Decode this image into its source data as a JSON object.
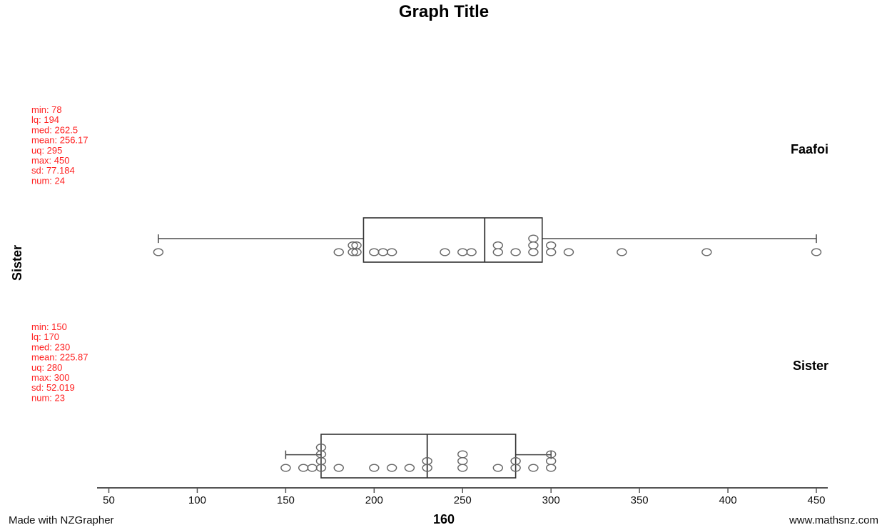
{
  "chart_data": {
    "type": "box",
    "title": "Graph Title",
    "xlabel": "160",
    "ylabel": "Sister",
    "xlim": [
      45,
      455
    ],
    "xticks": [
      50,
      100,
      150,
      200,
      250,
      300,
      350,
      400,
      450
    ],
    "groups": [
      {
        "name": "Faafoi",
        "stats": {
          "min": 78,
          "lq": 194,
          "med": 262.5,
          "mean": 256.17,
          "uq": 295,
          "max": 450,
          "sd": 77.184,
          "num": 24
        },
        "stats_text": [
          "min: 78",
          "lq: 194",
          "med: 262.5",
          "mean: 256.17",
          "uq: 295",
          "max: 450",
          "sd: 77.184",
          "num: 24"
        ],
        "points": [
          78,
          180,
          188,
          188,
          190,
          190,
          200,
          205,
          210,
          240,
          250,
          255,
          270,
          270,
          280,
          290,
          290,
          290,
          300,
          300,
          310,
          340,
          388,
          450
        ]
      },
      {
        "name": "Sister",
        "stats": {
          "min": 150,
          "lq": 170,
          "med": 230,
          "mean": 225.87,
          "uq": 280,
          "max": 300,
          "sd": 52.019,
          "num": 23
        },
        "stats_text": [
          "min: 150",
          "lq: 170",
          "med: 230",
          "mean: 225.87",
          "uq: 280",
          "max: 300",
          "sd: 52.019",
          "num: 23"
        ],
        "points": [
          150,
          160,
          165,
          170,
          170,
          170,
          170,
          180,
          200,
          210,
          220,
          230,
          230,
          250,
          250,
          250,
          270,
          280,
          280,
          290,
          300,
          300,
          300
        ]
      }
    ],
    "colors": {
      "stats": "#ff2020",
      "box": "#333333",
      "points": "#666666"
    }
  },
  "footer": {
    "left": "Made with NZGrapher",
    "right": "www.mathsnz.com"
  }
}
